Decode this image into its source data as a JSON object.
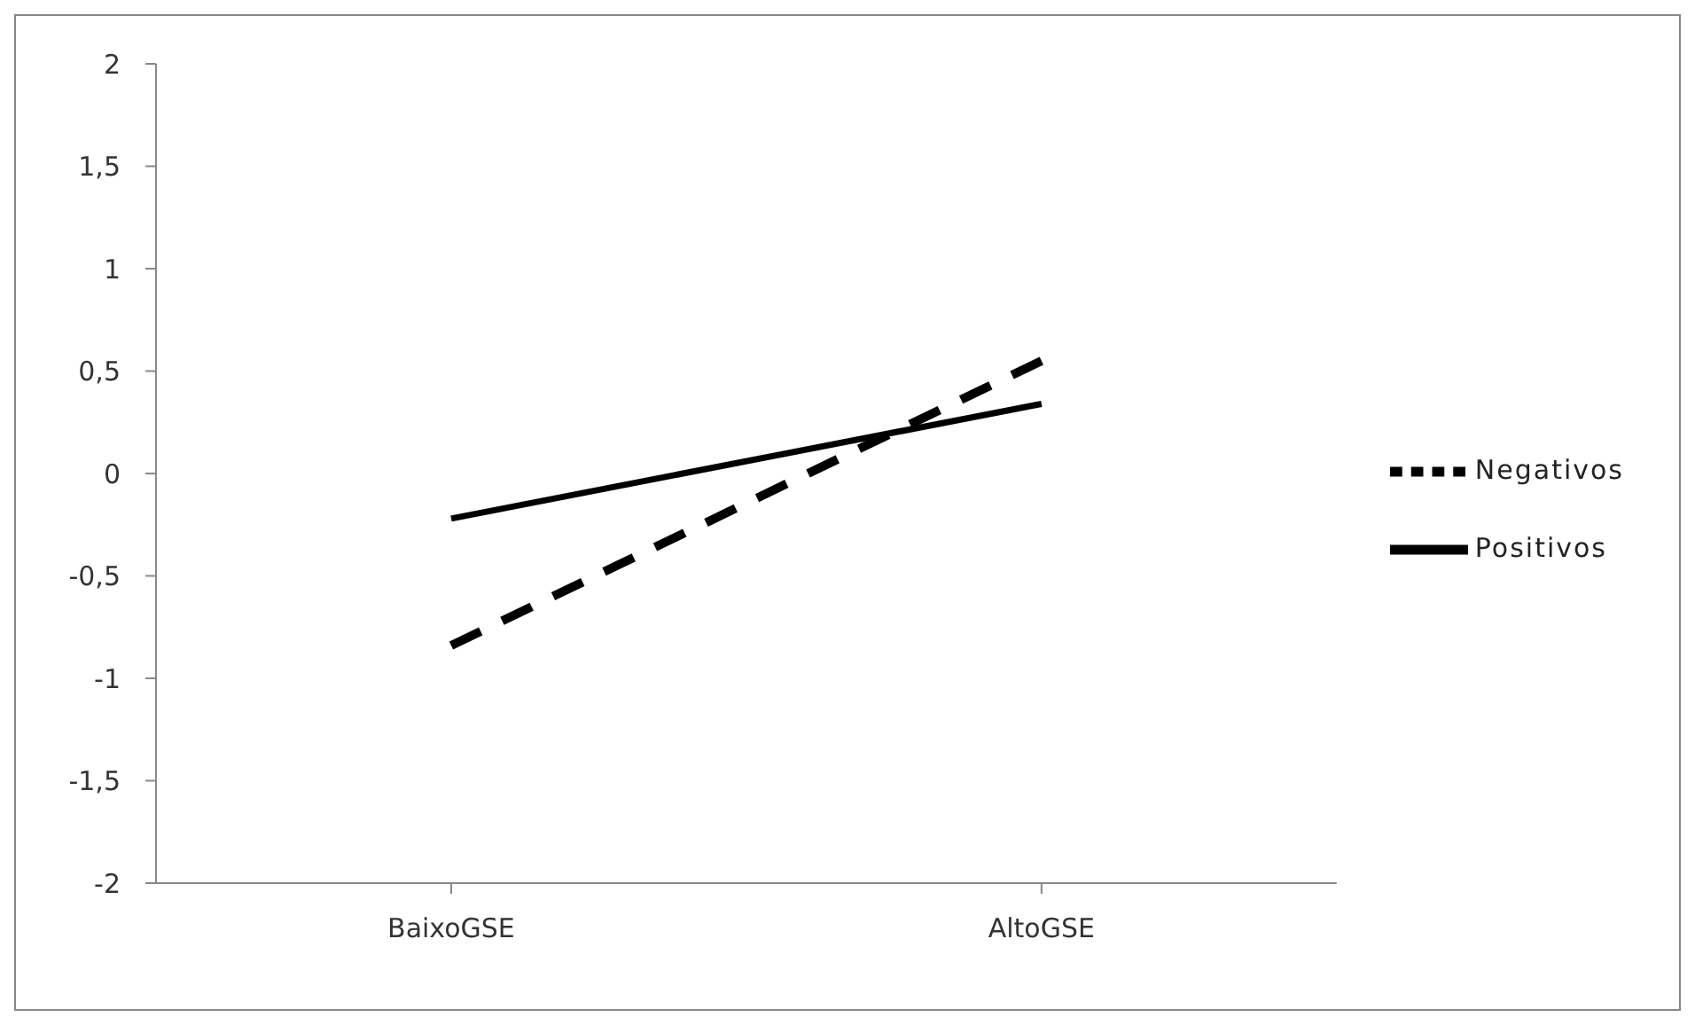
{
  "chart_data": {
    "type": "line",
    "categories": [
      "BaixoGSE",
      "AltoGSE"
    ],
    "series": [
      {
        "name": "Negativos",
        "color": "#000000",
        "line_style": "dashed",
        "values": [
          -0.84,
          0.55
        ]
      },
      {
        "name": "Positivos",
        "color": "#000000",
        "line_style": "solid",
        "values": [
          -0.22,
          0.34
        ]
      }
    ],
    "ylim": [
      -2,
      2
    ],
    "yticks": [
      -2,
      {
        "value": -1.5,
        "label": "-1,5"
      },
      -1,
      {
        "value": -0.5,
        "label": "-0,5"
      },
      0,
      {
        "value": 0.5,
        "label": "0,5"
      },
      1,
      {
        "value": 1.5,
        "label": "1,5"
      },
      2
    ],
    "grid": false,
    "legend": "right",
    "marker": "none"
  }
}
